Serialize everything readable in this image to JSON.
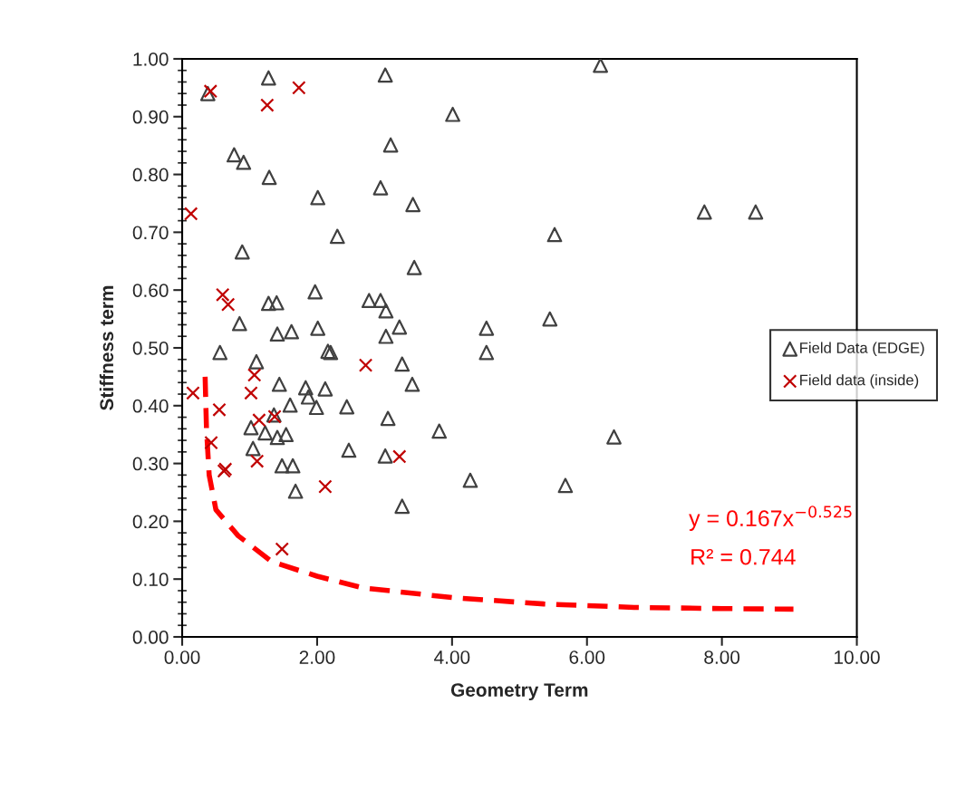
{
  "chart_data": {
    "type": "scatter",
    "xlabel": "Geometry Term",
    "ylabel": "Stiffness term",
    "xlim": [
      0,
      10
    ],
    "ylim": [
      0,
      1
    ],
    "xticks": [
      {
        "value": 0,
        "label": "0.00"
      },
      {
        "value": 2,
        "label": "2.00"
      },
      {
        "value": 4,
        "label": "4.00"
      },
      {
        "value": 6,
        "label": "6.00"
      },
      {
        "value": 8,
        "label": "8.00"
      },
      {
        "value": 10,
        "label": "10.00"
      }
    ],
    "yticks": [
      {
        "value": 0,
        "label": "0.00"
      },
      {
        "value": 0.1,
        "label": "0.10"
      },
      {
        "value": 0.2,
        "label": "0.20"
      },
      {
        "value": 0.3,
        "label": "0.30"
      },
      {
        "value": 0.4,
        "label": "0.40"
      },
      {
        "value": 0.5,
        "label": "0.50"
      },
      {
        "value": 0.6,
        "label": "0.60"
      },
      {
        "value": 0.7,
        "label": "0.70"
      },
      {
        "value": 0.8,
        "label": "0.80"
      },
      {
        "value": 0.9,
        "label": "0.90"
      },
      {
        "value": 1,
        "label": "1.00"
      }
    ],
    "grid": false,
    "legend": "right",
    "series": [
      {
        "name": "Field Data (EDGE)",
        "marker": "triangle",
        "color": "#404040",
        "x": [
          0.38,
          1.28,
          3.01,
          6.2,
          4.01,
          3.09,
          0.77,
          0.91,
          1.29,
          2.94,
          2.01,
          3.42,
          7.74,
          8.5,
          2.3,
          5.52,
          0.89,
          3.44,
          1.97,
          1.28,
          1.4,
          2.77,
          2.94,
          3.02,
          0.85,
          1.41,
          1.62,
          2.01,
          3.02,
          3.22,
          4.51,
          5.45,
          0.56,
          1.1,
          2.16,
          2.2,
          4.51,
          3.26,
          3.41,
          1.44,
          1.83,
          1.87,
          2.12,
          1.6,
          1.99,
          2.44,
          3.05,
          3.81,
          6.4,
          1.02,
          1.23,
          1.41,
          1.54,
          1.36,
          1.05,
          2.47,
          3.01,
          1.48,
          1.64,
          1.68,
          4.27,
          5.68,
          3.26
        ],
        "values": [
          0.94,
          0.967,
          0.972,
          0.989,
          0.904,
          0.851,
          0.834,
          0.821,
          0.795,
          0.777,
          0.76,
          0.748,
          0.735,
          0.735,
          0.693,
          0.696,
          0.666,
          0.639,
          0.597,
          0.577,
          0.578,
          0.582,
          0.582,
          0.564,
          0.542,
          0.524,
          0.528,
          0.534,
          0.52,
          0.536,
          0.534,
          0.55,
          0.492,
          0.476,
          0.494,
          0.492,
          0.492,
          0.472,
          0.437,
          0.437,
          0.431,
          0.415,
          0.429,
          0.401,
          0.397,
          0.398,
          0.378,
          0.356,
          0.346,
          0.362,
          0.353,
          0.345,
          0.35,
          0.384,
          0.326,
          0.323,
          0.313,
          0.296,
          0.296,
          0.252,
          0.271,
          0.262,
          0.226
        ]
      },
      {
        "name": "Field data (inside)",
        "marker": "cross",
        "color": "#c00000",
        "x": [
          0.42,
          1.26,
          1.73,
          0.13,
          0.6,
          0.68,
          1.07,
          1.02,
          0.16,
          0.55,
          2.72,
          1.14,
          1.37,
          0.43,
          1.11,
          0.62,
          0.64,
          3.22,
          2.12,
          1.48
        ],
        "values": [
          0.944,
          0.92,
          0.95,
          0.732,
          0.592,
          0.575,
          0.453,
          0.422,
          0.422,
          0.393,
          0.47,
          0.375,
          0.381,
          0.336,
          0.304,
          0.287,
          0.29,
          0.312,
          0.26,
          0.152
        ]
      },
      {
        "type": "line",
        "line_style": "dashed",
        "marker": "none",
        "color": "#ff0000",
        "x": [
          0.34,
          0.36,
          0.4,
          0.5,
          0.83,
          1.33,
          2.0,
          2.67,
          4.0,
          5.36,
          6.7,
          8.0,
          9.06
        ],
        "values": [
          0.45,
          0.36,
          0.28,
          0.22,
          0.175,
          0.13,
          0.105,
          0.085,
          0.068,
          0.057,
          0.051,
          0.049,
          0.048
        ]
      }
    ],
    "annotations": [
      "y = 0.167x$^{−0.525}$",
      "R² = 0.744"
    ]
  }
}
